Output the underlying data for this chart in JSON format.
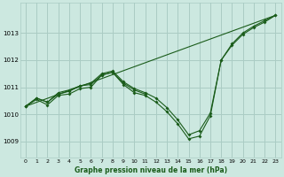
{
  "background_color": "#cce8e0",
  "grid_color": "#aaccc4",
  "line_color": "#1a5c1a",
  "title": "Graphe pression niveau de la mer (hPa)",
  "xlim": [
    -0.5,
    23.5
  ],
  "ylim": [
    1008.4,
    1014.1
  ],
  "yticks": [
    1009,
    1010,
    1011,
    1012,
    1013
  ],
  "xticks": [
    0,
    1,
    2,
    3,
    4,
    5,
    6,
    7,
    8,
    9,
    10,
    11,
    12,
    13,
    14,
    15,
    16,
    17,
    18,
    19,
    20,
    21,
    22,
    23
  ],
  "line_straight": {
    "x": [
      0,
      23
    ],
    "y": [
      1010.3,
      1013.65
    ]
  },
  "line_main": {
    "x": [
      0,
      1,
      2,
      3,
      4,
      5,
      6,
      7,
      8,
      9,
      10,
      11,
      12,
      13,
      14,
      15,
      16,
      17,
      18,
      19,
      20,
      21,
      22,
      23
    ],
    "y": [
      1010.3,
      1010.55,
      1010.35,
      1010.7,
      1010.75,
      1010.95,
      1011.0,
      1011.45,
      1011.55,
      1011.1,
      1010.8,
      1010.7,
      1010.45,
      1010.1,
      1009.65,
      1009.1,
      1009.2,
      1009.95,
      1012.0,
      1012.55,
      1012.95,
      1013.2,
      1013.4,
      1013.65
    ]
  },
  "line_upper": {
    "x": [
      0,
      1,
      2,
      3,
      4,
      5,
      6,
      7,
      8,
      9,
      10,
      11,
      12,
      13,
      14,
      15,
      16,
      17,
      18,
      19,
      20,
      21,
      22,
      23
    ],
    "y": [
      1010.3,
      1010.6,
      1010.45,
      1010.8,
      1010.9,
      1011.05,
      1011.15,
      1011.5,
      1011.6,
      1011.2,
      1010.95,
      1010.8,
      1010.6,
      1010.25,
      1009.8,
      1009.25,
      1009.4,
      1010.05,
      1012.0,
      1012.6,
      1013.0,
      1013.25,
      1013.45,
      1013.65
    ]
  },
  "line_short": {
    "x": [
      0,
      1,
      2,
      3,
      4,
      5,
      6,
      7,
      8,
      9,
      10,
      11
    ],
    "y": [
      1010.3,
      1010.6,
      1010.45,
      1010.75,
      1010.85,
      1011.05,
      1011.1,
      1011.45,
      1011.55,
      1011.15,
      1010.9,
      1010.75
    ]
  }
}
